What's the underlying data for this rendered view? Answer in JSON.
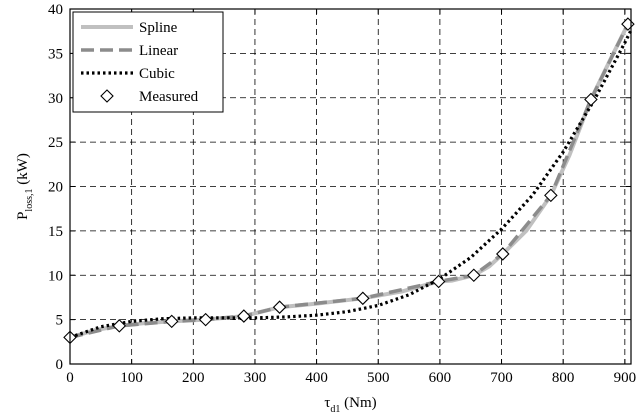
{
  "chart_data": {
    "type": "line",
    "title": "",
    "xlabel": {
      "main": "τ",
      "sub": "d1",
      "unit": " (Nm)"
    },
    "ylabel": {
      "main": "P",
      "sub": "loss,1",
      "unit": " (kW)"
    },
    "xlim": [
      0,
      910
    ],
    "ylim": [
      0,
      40
    ],
    "xticks": [
      0,
      100,
      200,
      300,
      400,
      500,
      600,
      700,
      800,
      900
    ],
    "yticks": [
      0,
      5,
      10,
      15,
      20,
      25,
      30,
      35,
      40
    ],
    "grid": true,
    "legend_position": "top-left",
    "series": [
      {
        "name": "Spline",
        "style": "solid",
        "color": "#c0c0c0",
        "x": [
          0,
          40,
          80,
          120,
          165,
          220,
          282,
          340,
          400,
          475,
          540,
          598,
          620,
          655,
          680,
          702,
          740,
          780,
          810,
          845,
          880,
          905
        ],
        "y": [
          3.0,
          3.8,
          4.3,
          4.6,
          4.8,
          5.0,
          5.4,
          6.4,
          6.8,
          7.4,
          8.2,
          9.3,
          9.4,
          10.0,
          11.0,
          12.4,
          15.0,
          19.0,
          23.5,
          29.8,
          34.8,
          38.3
        ]
      },
      {
        "name": "Linear",
        "style": "dashed",
        "color": "#8c8c8c",
        "x": [
          0,
          80,
          165,
          220,
          282,
          340,
          475,
          598,
          655,
          702,
          780,
          845,
          905
        ],
        "y": [
          3.0,
          4.3,
          4.8,
          5.0,
          5.4,
          6.4,
          7.4,
          9.3,
          10.0,
          12.4,
          19.0,
          29.8,
          38.3
        ]
      },
      {
        "name": "Cubic",
        "style": "dotted",
        "color": "#000000",
        "x": [
          0,
          50,
          100,
          150,
          200,
          250,
          300,
          350,
          400,
          450,
          500,
          550,
          600,
          650,
          700,
          750,
          800,
          850,
          900,
          910
        ],
        "y": [
          3.0,
          4.2,
          4.8,
          5.1,
          5.2,
          5.2,
          5.2,
          5.3,
          5.5,
          5.9,
          6.6,
          7.8,
          9.6,
          12.0,
          15.2,
          19.0,
          23.9,
          29.7,
          36.2,
          37.6
        ]
      },
      {
        "name": "Measured",
        "style": "markers",
        "color": "#000000",
        "x": [
          0,
          80,
          165,
          220,
          282,
          340,
          475,
          598,
          655,
          702,
          780,
          845,
          905
        ],
        "y": [
          3.0,
          4.3,
          4.8,
          5.0,
          5.4,
          6.4,
          7.4,
          9.3,
          10.0,
          12.4,
          19.0,
          29.8,
          38.3
        ]
      }
    ]
  }
}
